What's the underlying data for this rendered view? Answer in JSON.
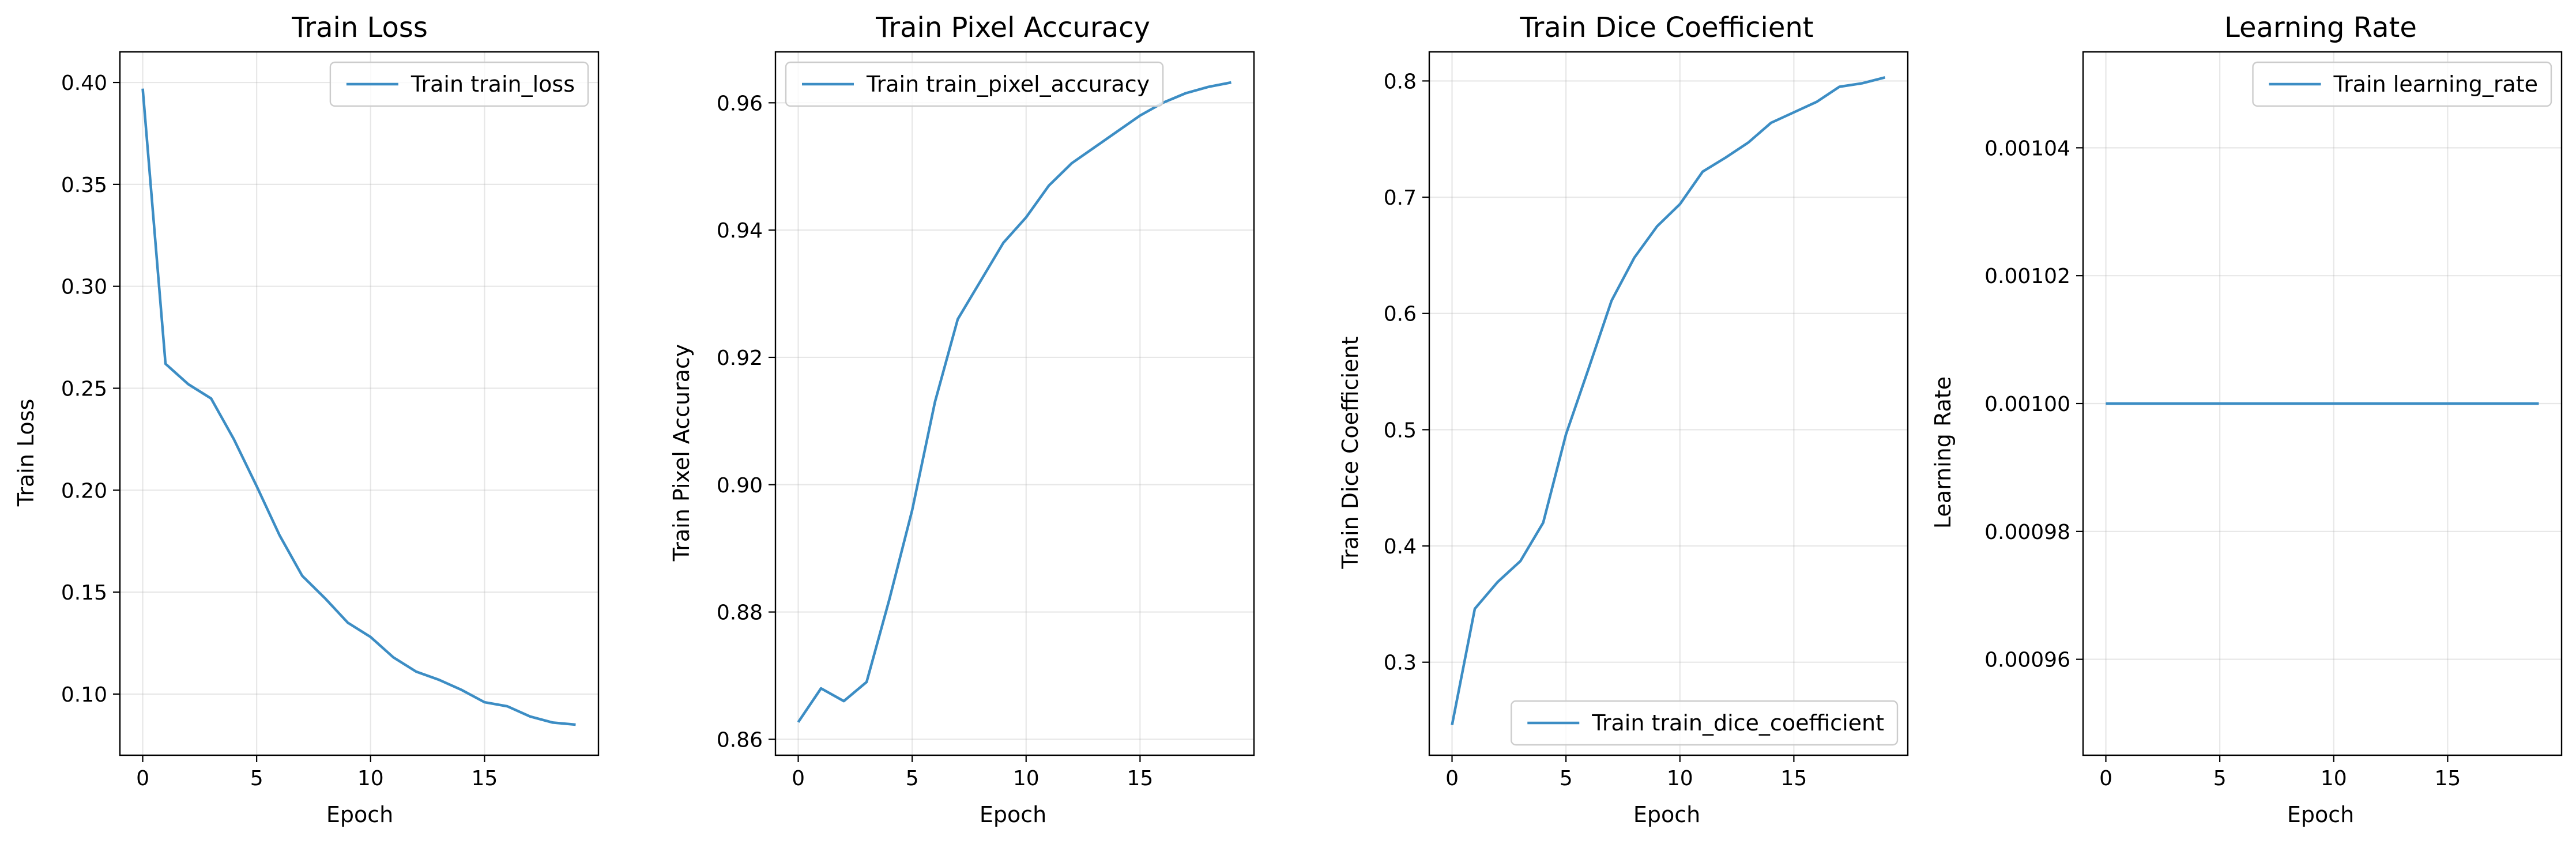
{
  "figure": {
    "line_color": "#3c8dc4",
    "grid": true
  },
  "chart_data": [
    {
      "type": "line",
      "title": "Train Loss",
      "xlabel": "Epoch",
      "ylabel": "Train Loss",
      "xlim": [
        -1,
        20
      ],
      "ylim": [
        0.07,
        0.415
      ],
      "xticks": [
        0,
        5,
        10,
        15
      ],
      "yticks": [
        0.1,
        0.15,
        0.2,
        0.25,
        0.3,
        0.35,
        0.4
      ],
      "ytick_labels": [
        "0.10",
        "0.15",
        "0.20",
        "0.25",
        "0.30",
        "0.35",
        "0.40"
      ],
      "legend_position": "upper right",
      "series": [
        {
          "name": "Train train_loss",
          "x": [
            0,
            1,
            2,
            3,
            4,
            5,
            6,
            7,
            8,
            9,
            10,
            11,
            12,
            13,
            14,
            15,
            16,
            17,
            18,
            19
          ],
          "y": [
            0.397,
            0.262,
            0.252,
            0.245,
            0.225,
            0.202,
            0.178,
            0.158,
            0.147,
            0.135,
            0.128,
            0.118,
            0.111,
            0.107,
            0.102,
            0.096,
            0.094,
            0.089,
            0.086,
            0.085
          ]
        }
      ]
    },
    {
      "type": "line",
      "title": "Train Pixel Accuracy",
      "xlabel": "Epoch",
      "ylabel": "Train Pixel Accuracy",
      "xlim": [
        -1,
        20
      ],
      "ylim": [
        0.8575,
        0.968
      ],
      "xticks": [
        0,
        5,
        10,
        15
      ],
      "yticks": [
        0.86,
        0.88,
        0.9,
        0.92,
        0.94,
        0.96
      ],
      "ytick_labels": [
        "0.86",
        "0.88",
        "0.90",
        "0.92",
        "0.94",
        "0.96"
      ],
      "legend_position": "upper left",
      "series": [
        {
          "name": "Train train_pixel_accuracy",
          "x": [
            0,
            1,
            2,
            3,
            4,
            5,
            6,
            7,
            8,
            9,
            10,
            11,
            12,
            13,
            14,
            15,
            16,
            17,
            18,
            19
          ],
          "y": [
            0.8627,
            0.868,
            0.866,
            0.869,
            0.882,
            0.896,
            0.913,
            0.926,
            0.932,
            0.938,
            0.942,
            0.947,
            0.9505,
            0.953,
            0.9555,
            0.958,
            0.96,
            0.9615,
            0.9625,
            0.9632
          ]
        }
      ]
    },
    {
      "type": "line",
      "title": "Train Dice Coefficient",
      "xlabel": "Epoch",
      "ylabel": "Train Dice Coefficient",
      "xlim": [
        -1,
        20
      ],
      "ylim": [
        0.22,
        0.825
      ],
      "xticks": [
        0,
        5,
        10,
        15
      ],
      "yticks": [
        0.3,
        0.4,
        0.5,
        0.6,
        0.7,
        0.8
      ],
      "ytick_labels": [
        "0.3",
        "0.4",
        "0.5",
        "0.6",
        "0.7",
        "0.8"
      ],
      "legend_position": "lower right",
      "series": [
        {
          "name": "Train train_dice_coefficient",
          "x": [
            0,
            1,
            2,
            3,
            4,
            5,
            6,
            7,
            8,
            9,
            10,
            11,
            12,
            13,
            14,
            15,
            16,
            17,
            18,
            19
          ],
          "y": [
            0.246,
            0.346,
            0.369,
            0.387,
            0.42,
            0.496,
            0.553,
            0.611,
            0.648,
            0.675,
            0.694,
            0.722,
            0.734,
            0.747,
            0.764,
            0.773,
            0.782,
            0.795,
            0.798,
            0.803
          ]
        }
      ]
    },
    {
      "type": "line",
      "title": "Learning Rate",
      "xlabel": "Epoch",
      "ylabel": "Learning Rate",
      "xlim": [
        -1,
        20
      ],
      "ylim": [
        0.000945,
        0.001055
      ],
      "xticks": [
        0,
        5,
        10,
        15
      ],
      "yticks": [
        0.00096,
        0.00098,
        0.001,
        0.00102,
        0.00104
      ],
      "ytick_labels": [
        "0.00096",
        "0.00098",
        "0.00100",
        "0.00102",
        "0.00104"
      ],
      "legend_position": "upper right",
      "series": [
        {
          "name": "Train learning_rate",
          "x": [
            0,
            1,
            2,
            3,
            4,
            5,
            6,
            7,
            8,
            9,
            10,
            11,
            12,
            13,
            14,
            15,
            16,
            17,
            18,
            19
          ],
          "y": [
            0.001,
            0.001,
            0.001,
            0.001,
            0.001,
            0.001,
            0.001,
            0.001,
            0.001,
            0.001,
            0.001,
            0.001,
            0.001,
            0.001,
            0.001,
            0.001,
            0.001,
            0.001,
            0.001,
            0.001
          ]
        }
      ]
    }
  ]
}
